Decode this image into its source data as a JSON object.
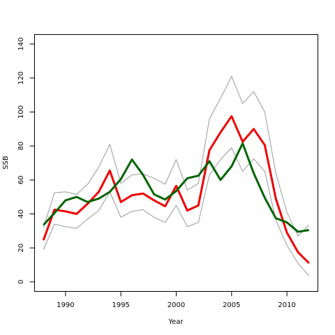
{
  "chart_data": {
    "type": "line",
    "xlabel": "Year",
    "ylabel": "SSB",
    "xlim": [
      1987.2,
      2012.8
    ],
    "ylim": [
      -5.6,
      145.6
    ],
    "xticks": [
      1990,
      1995,
      2000,
      2005,
      2010
    ],
    "yticks": [
      0,
      20,
      40,
      60,
      80,
      100,
      120,
      140
    ],
    "grid": false,
    "x": [
      1988,
      1989,
      1990,
      1991,
      1992,
      1993,
      1994,
      1995,
      1996,
      1997,
      1998,
      1999,
      2000,
      2001,
      2002,
      2003,
      2004,
      2005,
      2006,
      2007,
      2008,
      2009,
      2010,
      2011,
      2012
    ],
    "series": [
      {
        "color": "#999999",
        "role": "upper band",
        "values": [
          32.0,
          52.5,
          53.0,
          51.5,
          57.5,
          67.5,
          81.0,
          58.0,
          63.0,
          63.5,
          61.0,
          57.5,
          72.0,
          54.0,
          58.0,
          96.0,
          108.0,
          121.0,
          105.0,
          112.0,
          100.0,
          64.0,
          41.0,
          27.0,
          33.5
        ]
      },
      {
        "color": "#999999",
        "role": "lower band",
        "values": [
          19.0,
          34.0,
          32.5,
          31.5,
          37.0,
          42.0,
          53.0,
          38.0,
          41.5,
          42.5,
          38.0,
          35.0,
          45.0,
          32.5,
          35.0,
          63.0,
          72.0,
          79.0,
          65.0,
          72.5,
          65.0,
          36.5,
          21.5,
          11.0,
          3.5
        ]
      },
      {
        "color": "#ee0000",
        "values": [
          24.5,
          42.5,
          41.5,
          40.0,
          46.0,
          53.0,
          65.5,
          47.0,
          51.0,
          52.0,
          48.0,
          44.5,
          56.5,
          42.0,
          45.0,
          77.5,
          88.0,
          97.5,
          82.5,
          90.0,
          80.5,
          49.0,
          29.0,
          17.5,
          11.0
        ]
      },
      {
        "color": "#006400",
        "values": [
          33.5,
          40.5,
          48.0,
          50.0,
          47.0,
          49.0,
          53.0,
          60.5,
          72.0,
          63.0,
          51.5,
          48.5,
          53.5,
          61.0,
          62.5,
          71.0,
          60.0,
          68.0,
          81.5,
          64.0,
          49.5,
          37.5,
          35.0,
          29.5,
          30.5
        ]
      }
    ]
  }
}
